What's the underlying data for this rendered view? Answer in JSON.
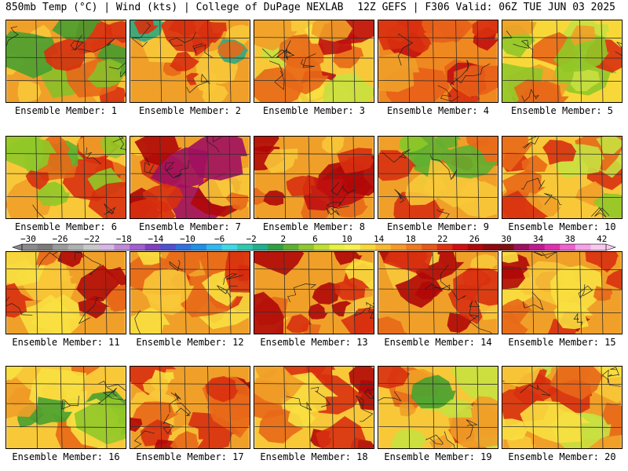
{
  "header": {
    "left": "850mb Temp (°C) | Wind (kts) | College of DuPage NEXLAB",
    "right": "12Z GEFS | F306 Valid: 06Z TUE JUN 03 2025"
  },
  "colorbar": {
    "tick_labels": [
      "−30",
      "−26",
      "−22",
      "−18",
      "−14",
      "−10",
      "−6",
      "−2",
      "2",
      "6",
      "10",
      "14",
      "18",
      "22",
      "26",
      "30",
      "34",
      "38",
      "42"
    ],
    "colors": [
      "#8a8a8a",
      "#7a7a7a",
      "#9a9a9a",
      "#b0b0b0",
      "#c8c8c8",
      "#d7b7e7",
      "#c08ad8",
      "#a060d0",
      "#8040c0",
      "#5050d0",
      "#3070e0",
      "#2090e8",
      "#30b8f0",
      "#40d8e8",
      "#30c8b0",
      "#20b090",
      "#30a040",
      "#60b030",
      "#90c830",
      "#c0e030",
      "#e8f040",
      "#f8f050",
      "#f8d838",
      "#f8b830",
      "#f89828",
      "#f07820",
      "#e85818",
      "#e03010",
      "#d01010",
      "#b00808",
      "#900810",
      "#801010",
      "#a01060",
      "#c01890",
      "#e030b0",
      "#f060d0",
      "#f8a0e8",
      "#f8c8f0"
    ]
  },
  "panels": [
    {
      "label": "Ensemble Member: 1",
      "palette": [
        "#f0a028",
        "#f8c838",
        "#e86818",
        "#48a030",
        "#88c028",
        "#d83010"
      ]
    },
    {
      "label": "Ensemble Member: 2",
      "palette": [
        "#f0a028",
        "#f8c838",
        "#e86818",
        "#30a880",
        "#60b030",
        "#d83010"
      ]
    },
    {
      "label": "Ensemble Member: 3",
      "palette": [
        "#f8c838",
        "#f8e040",
        "#f0a028",
        "#c8e040",
        "#e86818",
        "#c01010"
      ]
    },
    {
      "label": "Ensemble Member: 4",
      "palette": [
        "#f08820",
        "#f0a028",
        "#e86018",
        "#f8c838",
        "#d83010",
        "#c01010"
      ]
    },
    {
      "label": "Ensemble Member: 5",
      "palette": [
        "#f8d838",
        "#f0a028",
        "#c8e040",
        "#90c828",
        "#e86818",
        "#d83010"
      ]
    },
    {
      "label": "Ensemble Member: 6",
      "palette": [
        "#f8c838",
        "#f0a028",
        "#e86818",
        "#90c828",
        "#d83010",
        "#60b030"
      ]
    },
    {
      "label": "Ensemble Member: 7",
      "palette": [
        "#f0a028",
        "#e86818",
        "#d83010",
        "#f8c838",
        "#b00808",
        "#a01060"
      ]
    },
    {
      "label": "Ensemble Member: 8",
      "palette": [
        "#f0a028",
        "#e86818",
        "#d83010",
        "#f8c838",
        "#b00808",
        "#c01010"
      ]
    },
    {
      "label": "Ensemble Member: 9",
      "palette": [
        "#f0a028",
        "#f8c838",
        "#e86818",
        "#90c828",
        "#d83010",
        "#60b030"
      ]
    },
    {
      "label": "Ensemble Member: 10",
      "palette": [
        "#f8c838",
        "#f0a028",
        "#e86818",
        "#c8e040",
        "#d83010",
        "#90c828"
      ]
    },
    {
      "label": "Ensemble Member: 11",
      "palette": [
        "#f0a028",
        "#f8c838",
        "#e86818",
        "#d83010",
        "#b00808",
        "#f8e040"
      ]
    },
    {
      "label": "Ensemble Member: 12",
      "palette": [
        "#f0a028",
        "#f8c838",
        "#e86818",
        "#d83010",
        "#f8e040",
        "#b00808"
      ]
    },
    {
      "label": "Ensemble Member: 13",
      "palette": [
        "#f0a028",
        "#f8c838",
        "#e86818",
        "#d83010",
        "#b00808",
        "#f8e040"
      ]
    },
    {
      "label": "Ensemble Member: 14",
      "palette": [
        "#f0a028",
        "#f8c838",
        "#e86818",
        "#d83010",
        "#f8e040",
        "#b00808"
      ]
    },
    {
      "label": "Ensemble Member: 15",
      "palette": [
        "#f0a028",
        "#f8c838",
        "#e86818",
        "#d83010",
        "#b00808",
        "#f8e040"
      ]
    },
    {
      "label": "Ensemble Member: 16",
      "palette": [
        "#f8c838",
        "#f0a028",
        "#f8e040",
        "#90c828",
        "#48a030",
        "#e86818"
      ]
    },
    {
      "label": "Ensemble Member: 17",
      "palette": [
        "#f0a028",
        "#f8c838",
        "#e86818",
        "#d83010",
        "#f8e040",
        "#b00808"
      ]
    },
    {
      "label": "Ensemble Member: 18",
      "palette": [
        "#f8c838",
        "#f0a028",
        "#e86818",
        "#d83010",
        "#f8e040",
        "#b00808"
      ]
    },
    {
      "label": "Ensemble Member: 19",
      "palette": [
        "#f8c838",
        "#f0a028",
        "#e86818",
        "#c8e040",
        "#48a030",
        "#d83010"
      ]
    },
    {
      "label": "Ensemble Member: 20",
      "palette": [
        "#f0a028",
        "#f8c838",
        "#e86818",
        "#f8e040",
        "#d83010",
        "#c8e040"
      ]
    }
  ]
}
